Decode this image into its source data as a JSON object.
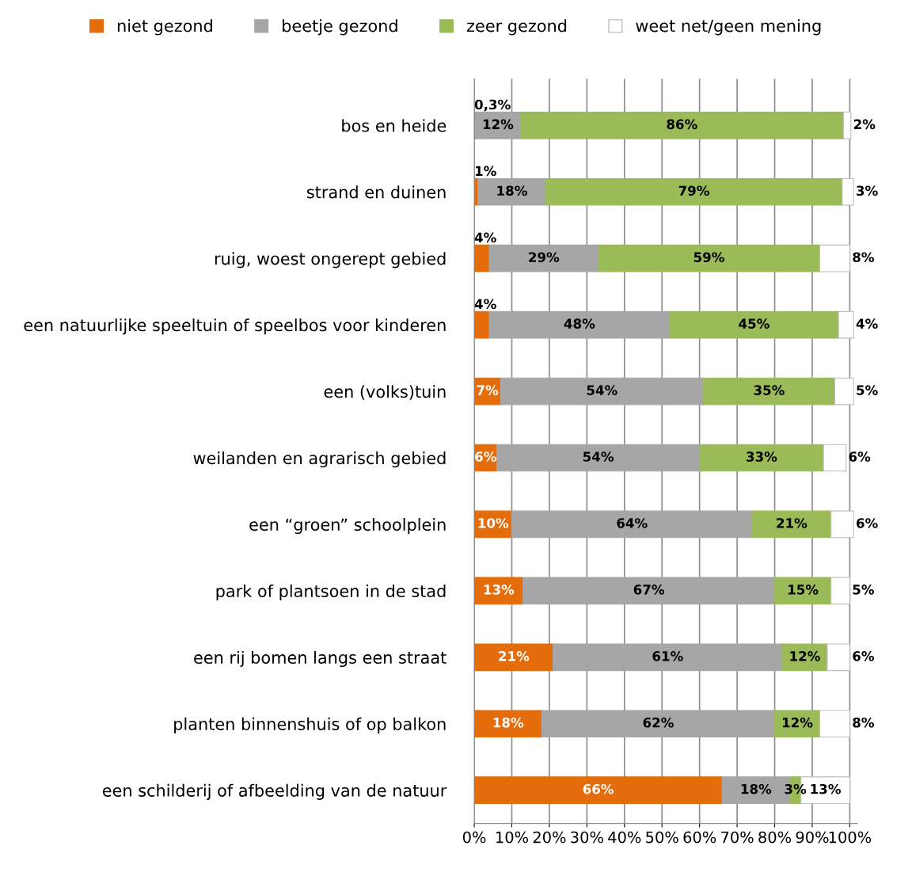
{
  "chart_data": {
    "type": "bar",
    "orientation": "horizontal",
    "stacked": true,
    "legend": "top",
    "grid": "x",
    "categories": [
      "bos en heide",
      "strand en duinen",
      "ruig, woest ongerept gebied",
      "een natuurlijke speeltuin of speelbos voor kinderen",
      "een (volks)tuin",
      "weilanden en agrarisch gebied",
      "een “groen” schoolplein",
      "park of plantsoen in de stad",
      "een rij bomen langs een straat",
      "planten binnenshuis of op balkon",
      "een schilderij of afbeelding van de natuur"
    ],
    "series": [
      {
        "name": "niet gezond",
        "color": "#e46c0a",
        "values": [
          0.3,
          1,
          4,
          4,
          7,
          6,
          10,
          13,
          21,
          18,
          66
        ],
        "value_labels": [
          "0,3%",
          "1%",
          "4%",
          "4%",
          "7%",
          "6%",
          "10%",
          "13%",
          "21%",
          "18%",
          "66%"
        ]
      },
      {
        "name": "beetje gezond",
        "color": "#a6a6a6",
        "values": [
          12,
          18,
          29,
          48,
          54,
          54,
          64,
          67,
          61,
          62,
          18
        ],
        "value_labels": [
          "12%",
          "18%",
          "29%",
          "48%",
          "54%",
          "54%",
          "64%",
          "67%",
          "61%",
          "62%",
          "18%"
        ]
      },
      {
        "name": "zeer gezond",
        "color": "#9bbb59",
        "values": [
          86,
          79,
          59,
          45,
          35,
          33,
          21,
          15,
          12,
          12,
          3
        ],
        "value_labels": [
          "86%",
          "79%",
          "59%",
          "45%",
          "35%",
          "33%",
          "21%",
          "15%",
          "12%",
          "12%",
          "3%"
        ]
      },
      {
        "name": "weet net/geen mening",
        "color": "#ffffff",
        "values": [
          2,
          3,
          8,
          4,
          5,
          6,
          6,
          5,
          6,
          8,
          13
        ],
        "value_labels": [
          "2%",
          "3%",
          "8%",
          "4%",
          "5%",
          "6%",
          "6%",
          "5%",
          "6%",
          "8%",
          "13%"
        ]
      }
    ],
    "xlim": [
      0,
      102
    ],
    "xticks": [
      {
        "value": 0,
        "label": "0%"
      },
      {
        "value": 10,
        "label": "10%"
      },
      {
        "value": 20,
        "label": "20%"
      },
      {
        "value": 30,
        "label": "30%"
      },
      {
        "value": 40,
        "label": "40%"
      },
      {
        "value": 50,
        "label": "50%"
      },
      {
        "value": 60,
        "label": "60%"
      },
      {
        "value": 70,
        "label": "70%"
      },
      {
        "value": 80,
        "label": "80%"
      },
      {
        "value": 90,
        "label": "90%"
      },
      {
        "value": 100,
        "label": "100%"
      }
    ]
  }
}
